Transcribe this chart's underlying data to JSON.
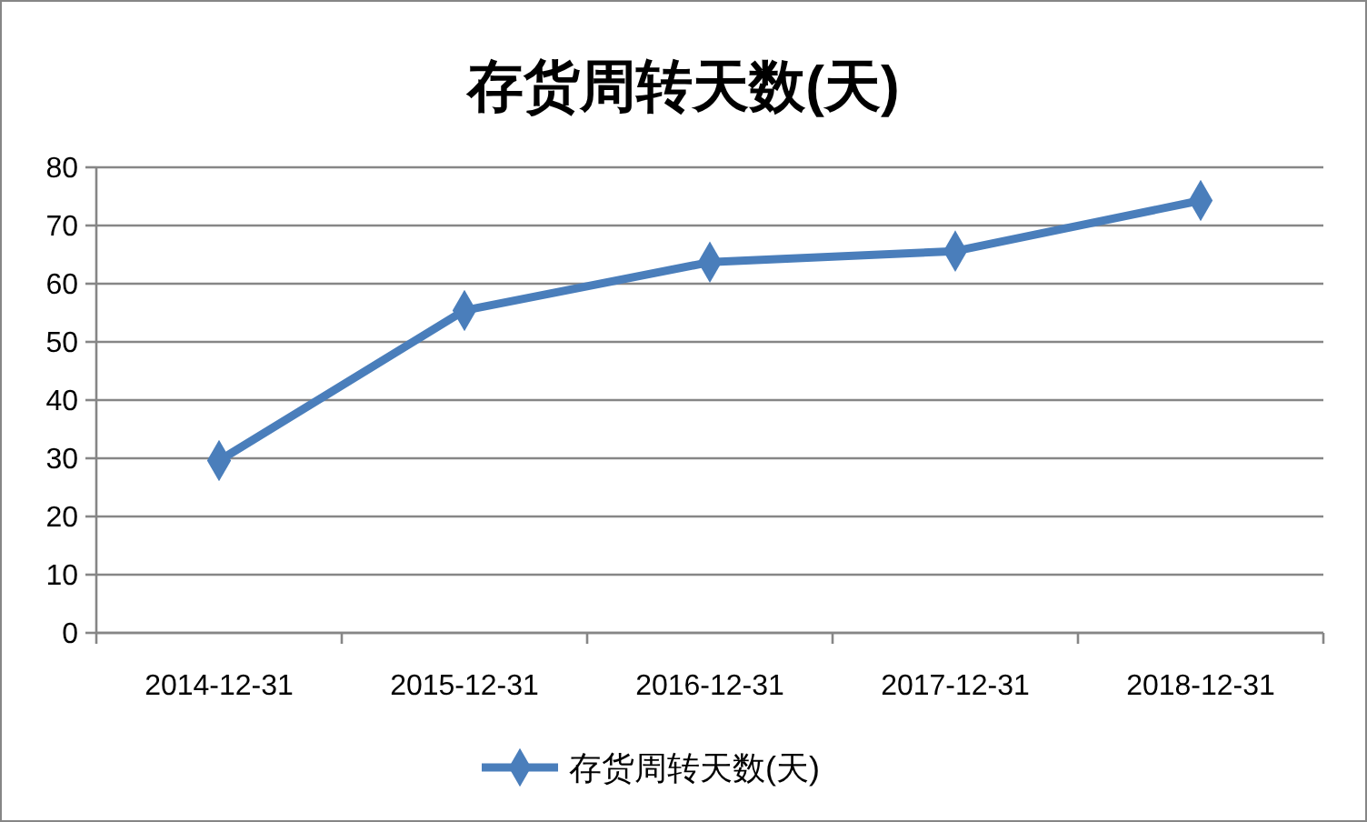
{
  "chart_data": {
    "type": "line",
    "title": "存货周转天数(天)",
    "categories": [
      "2014-12-31",
      "2015-12-31",
      "2016-12-31",
      "2017-12-31",
      "2018-12-31"
    ],
    "series": [
      {
        "name": "存货周转天数(天)",
        "color": "#4a7ebb",
        "values": [
          29.6,
          55.4,
          63.7,
          65.6,
          74.3
        ]
      }
    ],
    "ylim": [
      0,
      80
    ],
    "yticks": [
      0,
      10,
      20,
      30,
      40,
      50,
      60,
      70,
      80
    ],
    "grid": "y",
    "legend": "bottom",
    "marker": "diamond",
    "line_style": "solid"
  }
}
